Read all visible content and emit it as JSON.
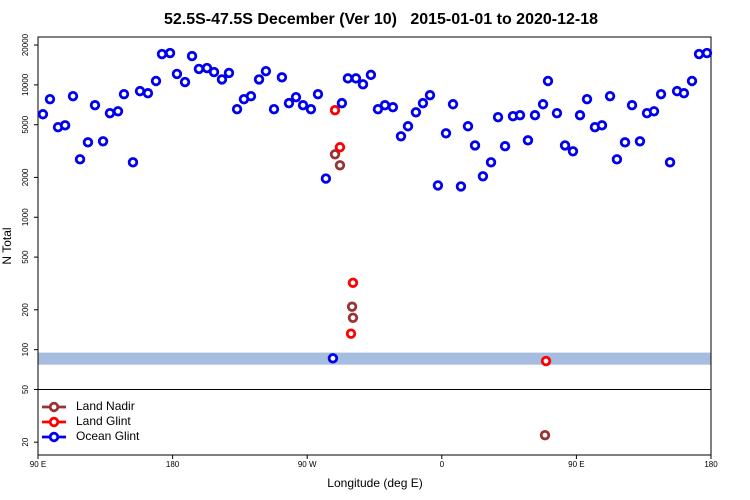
{
  "chart_data": {
    "type": "scatter",
    "title": "52.5S-47.5S December (Ver 10)   2015-01-01 to 2020-12-18",
    "x_label": "Longitude (deg E)",
    "y_label": "N Total",
    "log_y": true,
    "xlim": [
      90,
      540
    ],
    "xticks": [
      {
        "value": 90,
        "label": "90 E"
      },
      {
        "value": 180,
        "label": "180"
      },
      {
        "value": 270,
        "label": "90 W"
      },
      {
        "value": 360,
        "label": "0"
      },
      {
        "value": 450,
        "label": "90 E"
      },
      {
        "value": 540,
        "label": "180"
      }
    ],
    "ylim": [
      16,
      23000
    ],
    "yticks": [
      20,
      50,
      100,
      200,
      500,
      1000,
      2000,
      5000,
      10000,
      20000
    ],
    "shaded_band": [
      77,
      95
    ],
    "band_color": "#a6bddf",
    "hline": 50,
    "legend": "lower left",
    "series": [
      {
        "name": "Land Nadir",
        "color": "#993333",
        "x": [
          288.6,
          291.9,
          300.0,
          300.6,
          429.0
        ],
        "values": [
          2990,
          2470,
          211,
          174,
          22.6
        ]
      },
      {
        "name": "Land Glint",
        "color": "#ff0000",
        "x": [
          288.6,
          291.9,
          300.6,
          299.3,
          429.7
        ],
        "values": [
          6440,
          3380,
          320,
          132,
          82
        ]
      },
      {
        "name": "Ocean Glint",
        "color": "#0000ee",
        "x": [
          93.3,
          98.0,
          103.4,
          108.1,
          113.4,
          118.1,
          123.4,
          128.1,
          133.5,
          138.1,
          143.5,
          147.5,
          153.5,
          158.2,
          163.5,
          168.9,
          172.9,
          178.3,
          182.9,
          188.3,
          193.0,
          197.6,
          203.0,
          207.7,
          213.0,
          217.7,
          223.1,
          227.7,
          232.4,
          237.8,
          242.4,
          247.8,
          253.1,
          257.8,
          262.5,
          267.2,
          272.5,
          277.2,
          282.5,
          287.2,
          293.2,
          297.2,
          302.6,
          307.3,
          312.6,
          317.3,
          322.0,
          327.3,
          332.7,
          337.4,
          342.7,
          347.4,
          352.1,
          357.4,
          362.8,
          367.5,
          372.8,
          377.5,
          382.2,
          387.5,
          392.9,
          397.6,
          402.3,
          407.6,
          412.3,
          417.6,
          422.3,
          427.7,
          431.0,
          437.0,
          442.4,
          447.7,
          452.4,
          457.1,
          462.4,
          467.1,
          472.5,
          477.1,
          482.5,
          487.2,
          492.5,
          497.2,
          501.9,
          506.6,
          512.6,
          517.3,
          521.9,
          527.3,
          532.0,
          537.3
        ],
        "values": [
          6000,
          7800,
          4790,
          4950,
          8220,
          2740,
          3680,
          7020,
          3750,
          6110,
          6320,
          8510,
          2600,
          8970,
          8650,
          10700,
          17100,
          17400,
          12100,
          10500,
          16500,
          13200,
          13400,
          12500,
          11000,
          12300,
          6550,
          7800,
          8220,
          11000,
          12700,
          6550,
          11400,
          7280,
          8080,
          7020,
          6550,
          8510,
          1960,
          86,
          7280,
          11200,
          11200,
          10100,
          11900,
          6550,
          7020,
          6780,
          4090,
          4870,
          6210,
          7280,
          8360,
          1740,
          4310,
          7140,
          1710,
          4870,
          3490,
          2040,
          2600,
          5700,
          3440,
          5800,
          5900,
          3810,
          5900,
          7140,
          10700,
          6110,
          3490,
          3150,
          5900,
          7800,
          4790,
          4950,
          8220,
          2740,
          3680,
          7020,
          3750,
          6110,
          6320,
          8510,
          2600,
          8970,
          8650,
          10700,
          17100,
          17400
        ]
      }
    ]
  }
}
